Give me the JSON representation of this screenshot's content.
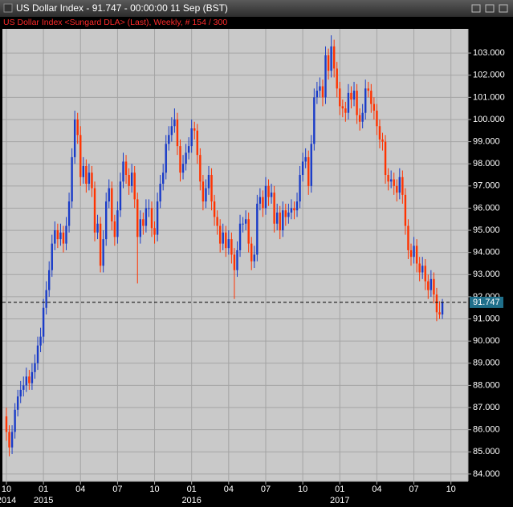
{
  "chart_data": {
    "type": "candlestick",
    "title": "US Dollar Index - 91.747 - 00:00:00  11 Sep (BST)",
    "subtitle": "US Dollar Index <Sungard DLA> (Last), Weekly, # 154 / 300",
    "up_color": "#1a3cc8",
    "down_color": "#ff3300",
    "grid": true,
    "last_value": 91.747,
    "ylim": [
      83.67,
      104.09
    ],
    "yticks": [
      {
        "value": 84,
        "label": "84.000"
      },
      {
        "value": 85,
        "label": "85.000"
      },
      {
        "value": 86,
        "label": "86.000"
      },
      {
        "value": 87,
        "label": "87.000"
      },
      {
        "value": 88,
        "label": "88.000"
      },
      {
        "value": 89,
        "label": "89.000"
      },
      {
        "value": 90,
        "label": "90.000"
      },
      {
        "value": 91,
        "label": "91.000"
      },
      {
        "value": 92,
        "label": "92.000"
      },
      {
        "value": 93,
        "label": "93.000"
      },
      {
        "value": 94,
        "label": "94.000"
      },
      {
        "value": 95,
        "label": "95.000"
      },
      {
        "value": 96,
        "label": "96.000"
      },
      {
        "value": 97,
        "label": "97.000"
      },
      {
        "value": 98,
        "label": "98.000"
      },
      {
        "value": 99,
        "label": "99.000"
      },
      {
        "value": 100,
        "label": "100.000"
      },
      {
        "value": 101,
        "label": "101.000"
      },
      {
        "value": 102,
        "label": "102.000"
      },
      {
        "value": 103,
        "label": "103.000"
      }
    ],
    "xlim": [
      -1.4,
      162
    ],
    "xticks": [
      {
        "value": 0,
        "label": "10"
      },
      {
        "value": 13,
        "label": "01"
      },
      {
        "value": 26,
        "label": "04"
      },
      {
        "value": 39,
        "label": "07"
      },
      {
        "value": 52,
        "label": "10"
      },
      {
        "value": 65,
        "label": "01"
      },
      {
        "value": 78,
        "label": "04"
      },
      {
        "value": 91,
        "label": "07"
      },
      {
        "value": 104,
        "label": "10"
      },
      {
        "value": 117,
        "label": "01"
      },
      {
        "value": 130,
        "label": "04"
      },
      {
        "value": 143,
        "label": "07"
      },
      {
        "value": 156,
        "label": "10"
      }
    ],
    "year_labels": [
      {
        "value": 0,
        "label": "2014"
      },
      {
        "value": 13,
        "label": "2015"
      },
      {
        "value": 65,
        "label": "2016"
      },
      {
        "value": 117,
        "label": "2017"
      }
    ],
    "ohlc": [
      [
        86.6,
        87.0,
        85.5,
        85.9
      ],
      [
        85.9,
        86.2,
        84.8,
        85.2
      ],
      [
        85.2,
        86.2,
        84.9,
        85.9
      ],
      [
        85.9,
        87.2,
        85.6,
        86.9
      ],
      [
        86.9,
        87.8,
        86.6,
        87.5
      ],
      [
        87.5,
        88.2,
        87.2,
        87.8
      ],
      [
        87.8,
        88.4,
        87.5,
        88.0
      ],
      [
        88.0,
        88.8,
        87.7,
        88.4
      ],
      [
        88.4,
        88.7,
        87.8,
        88.1
      ],
      [
        88.1,
        89.0,
        87.8,
        88.6
      ],
      [
        88.6,
        89.4,
        88.3,
        89.0
      ],
      [
        89.0,
        90.2,
        88.7,
        89.8
      ],
      [
        89.8,
        90.6,
        89.5,
        90.2
      ],
      [
        90.2,
        91.9,
        89.9,
        91.5
      ],
      [
        91.5,
        92.7,
        91.2,
        92.3
      ],
      [
        92.3,
        93.6,
        92.0,
        93.2
      ],
      [
        93.2,
        94.8,
        92.9,
        94.4
      ],
      [
        94.4,
        95.4,
        94.1,
        95.0
      ],
      [
        95.0,
        95.3,
        94.2,
        94.6
      ],
      [
        94.6,
        95.3,
        94.3,
        94.9
      ],
      [
        94.9,
        95.2,
        94.0,
        94.4
      ],
      [
        94.4,
        95.6,
        94.1,
        95.2
      ],
      [
        95.2,
        96.7,
        94.9,
        96.3
      ],
      [
        96.3,
        98.7,
        96.0,
        98.3
      ],
      [
        98.3,
        100.4,
        98.0,
        100.0
      ],
      [
        100.0,
        100.3,
        98.9,
        99.3
      ],
      [
        99.3,
        99.7,
        97.0,
        97.4
      ],
      [
        97.4,
        98.3,
        97.1,
        97.9
      ],
      [
        97.9,
        98.2,
        96.7,
        97.1
      ],
      [
        97.1,
        98.0,
        96.8,
        97.6
      ],
      [
        97.6,
        97.9,
        96.5,
        96.9
      ],
      [
        96.9,
        97.2,
        94.5,
        94.9
      ],
      [
        94.9,
        95.7,
        94.6,
        95.3
      ],
      [
        95.3,
        95.6,
        93.1,
        93.4
      ],
      [
        93.4,
        95.0,
        93.1,
        94.6
      ],
      [
        94.6,
        96.7,
        94.3,
        96.3
      ],
      [
        96.3,
        97.3,
        96.0,
        96.9
      ],
      [
        96.9,
        97.2,
        95.0,
        95.4
      ],
      [
        95.4,
        95.7,
        94.3,
        94.7
      ],
      [
        94.7,
        96.3,
        94.4,
        95.9
      ],
      [
        95.9,
        97.6,
        95.6,
        97.2
      ],
      [
        97.2,
        98.5,
        96.9,
        98.1
      ],
      [
        98.1,
        98.4,
        97.1,
        97.5
      ],
      [
        97.5,
        97.8,
        96.6,
        97.0
      ],
      [
        97.0,
        98.0,
        96.7,
        97.6
      ],
      [
        97.6,
        97.9,
        96.0,
        96.4
      ],
      [
        96.4,
        96.7,
        92.6,
        94.7
      ],
      [
        94.7,
        95.9,
        94.4,
        95.5
      ],
      [
        95.5,
        95.8,
        94.8,
        95.2
      ],
      [
        95.2,
        96.4,
        94.9,
        96.0
      ],
      [
        96.0,
        96.4,
        95.6,
        96.0
      ],
      [
        96.0,
        96.3,
        94.7,
        95.1
      ],
      [
        95.1,
        95.4,
        94.4,
        94.8
      ],
      [
        94.8,
        96.7,
        94.5,
        96.3
      ],
      [
        96.3,
        97.5,
        96.0,
        97.1
      ],
      [
        97.1,
        98.0,
        96.8,
        97.6
      ],
      [
        97.6,
        99.3,
        97.3,
        98.9
      ],
      [
        98.9,
        99.7,
        98.6,
        99.3
      ],
      [
        99.3,
        100.1,
        99.0,
        99.7
      ],
      [
        99.7,
        100.5,
        99.4,
        100.0
      ],
      [
        100.0,
        100.3,
        98.4,
        98.8
      ],
      [
        98.8,
        99.1,
        97.2,
        97.6
      ],
      [
        97.6,
        98.4,
        97.3,
        98.0
      ],
      [
        98.0,
        98.9,
        97.7,
        98.5
      ],
      [
        98.5,
        99.2,
        98.2,
        98.8
      ],
      [
        98.8,
        100.0,
        98.5,
        99.6
      ],
      [
        99.6,
        99.9,
        99.1,
        99.5
      ],
      [
        99.5,
        99.8,
        98.0,
        98.4
      ],
      [
        98.4,
        98.7,
        96.8,
        97.2
      ],
      [
        97.2,
        97.5,
        95.9,
        96.3
      ],
      [
        96.3,
        97.3,
        96.0,
        96.9
      ],
      [
        96.9,
        97.9,
        96.6,
        97.5
      ],
      [
        97.5,
        97.8,
        95.9,
        96.3
      ],
      [
        96.3,
        96.6,
        95.2,
        95.6
      ],
      [
        95.6,
        95.9,
        94.8,
        95.2
      ],
      [
        95.2,
        95.5,
        94.0,
        94.4
      ],
      [
        94.4,
        95.3,
        94.1,
        94.9
      ],
      [
        94.9,
        95.2,
        93.8,
        94.2
      ],
      [
        94.2,
        95.0,
        93.9,
        94.6
      ],
      [
        94.6,
        94.9,
        93.5,
        93.9
      ],
      [
        93.9,
        94.2,
        91.9,
        93.2
      ],
      [
        93.2,
        94.5,
        92.9,
        94.1
      ],
      [
        94.1,
        95.7,
        93.8,
        95.3
      ],
      [
        95.3,
        95.6,
        94.9,
        95.3
      ],
      [
        95.3,
        95.9,
        95.0,
        95.5
      ],
      [
        95.5,
        95.8,
        94.0,
        94.4
      ],
      [
        94.4,
        94.7,
        93.2,
        93.6
      ],
      [
        93.6,
        94.3,
        93.3,
        93.9
      ],
      [
        93.9,
        96.6,
        93.6,
        96.2
      ],
      [
        96.2,
        96.9,
        95.9,
        96.5
      ],
      [
        96.5,
        96.8,
        95.6,
        96.0
      ],
      [
        96.0,
        97.4,
        95.7,
        97.0
      ],
      [
        97.0,
        97.3,
        96.1,
        96.5
      ],
      [
        96.5,
        97.1,
        96.2,
        96.7
      ],
      [
        96.7,
        97.0,
        94.9,
        95.3
      ],
      [
        95.3,
        96.2,
        95.0,
        95.8
      ],
      [
        95.8,
        96.1,
        94.6,
        95.0
      ],
      [
        95.0,
        96.3,
        94.7,
        95.9
      ],
      [
        95.9,
        96.2,
        95.2,
        95.6
      ],
      [
        95.6,
        96.2,
        95.3,
        95.8
      ],
      [
        95.8,
        96.4,
        95.5,
        96.0
      ],
      [
        96.0,
        96.3,
        95.5,
        95.9
      ],
      [
        95.9,
        96.7,
        95.6,
        96.3
      ],
      [
        96.3,
        97.9,
        96.0,
        97.5
      ],
      [
        97.5,
        98.5,
        97.2,
        98.1
      ],
      [
        98.1,
        98.7,
        97.8,
        98.3
      ],
      [
        98.3,
        98.6,
        96.6,
        97.0
      ],
      [
        97.0,
        99.3,
        96.7,
        98.9
      ],
      [
        98.9,
        101.4,
        98.6,
        101.0
      ],
      [
        101.0,
        101.7,
        100.7,
        101.3
      ],
      [
        101.3,
        101.9,
        101.0,
        101.5
      ],
      [
        101.5,
        101.8,
        100.6,
        101.0
      ],
      [
        101.0,
        103.3,
        100.7,
        102.9
      ],
      [
        102.9,
        103.2,
        101.8,
        102.2
      ],
      [
        102.2,
        103.8,
        101.9,
        103.3
      ],
      [
        103.3,
        103.6,
        101.9,
        102.3
      ],
      [
        102.3,
        102.6,
        101.0,
        101.4
      ],
      [
        101.4,
        101.7,
        100.2,
        100.6
      ],
      [
        100.6,
        100.9,
        100.1,
        100.5
      ],
      [
        100.5,
        100.8,
        99.9,
        100.3
      ],
      [
        100.3,
        101.6,
        100.0,
        101.2
      ],
      [
        101.2,
        101.5,
        100.5,
        100.9
      ],
      [
        100.9,
        101.7,
        100.6,
        101.3
      ],
      [
        101.3,
        101.6,
        99.8,
        100.2
      ],
      [
        100.2,
        100.5,
        99.5,
        99.9
      ],
      [
        99.9,
        100.7,
        99.6,
        100.3
      ],
      [
        100.3,
        101.8,
        100.0,
        101.4
      ],
      [
        101.4,
        101.7,
        101.0,
        101.3
      ],
      [
        101.3,
        101.6,
        100.3,
        100.7
      ],
      [
        100.7,
        101.0,
        100.0,
        100.4
      ],
      [
        100.4,
        100.7,
        99.3,
        99.7
      ],
      [
        99.7,
        100.0,
        98.7,
        99.1
      ],
      [
        99.1,
        99.4,
        98.6,
        99.0
      ],
      [
        99.0,
        99.3,
        97.1,
        97.5
      ],
      [
        97.5,
        97.8,
        96.8,
        97.2
      ],
      [
        97.2,
        97.7,
        96.9,
        97.3
      ],
      [
        97.3,
        97.6,
        96.6,
        97.0
      ],
      [
        97.0,
        97.3,
        96.3,
        96.7
      ],
      [
        96.7,
        97.8,
        96.4,
        97.4
      ],
      [
        97.4,
        97.7,
        96.2,
        96.6
      ],
      [
        96.6,
        96.9,
        94.8,
        95.2
      ],
      [
        95.2,
        95.5,
        93.7,
        94.1
      ],
      [
        94.1,
        94.4,
        93.4,
        93.8
      ],
      [
        93.8,
        94.7,
        93.5,
        94.3
      ],
      [
        94.3,
        94.6,
        93.1,
        93.5
      ],
      [
        93.5,
        93.8,
        92.7,
        93.1
      ],
      [
        93.1,
        93.8,
        92.8,
        93.4
      ],
      [
        93.4,
        93.7,
        92.3,
        92.7
      ],
      [
        92.7,
        93.0,
        91.9,
        92.3
      ],
      [
        92.3,
        93.2,
        92.0,
        92.8
      ],
      [
        92.8,
        93.1,
        91.7,
        92.1
      ],
      [
        92.1,
        92.4,
        90.9,
        91.3
      ],
      [
        91.3,
        91.8,
        91.0,
        91.2
      ],
      [
        91.2,
        91.9,
        91.0,
        91.747
      ]
    ]
  }
}
